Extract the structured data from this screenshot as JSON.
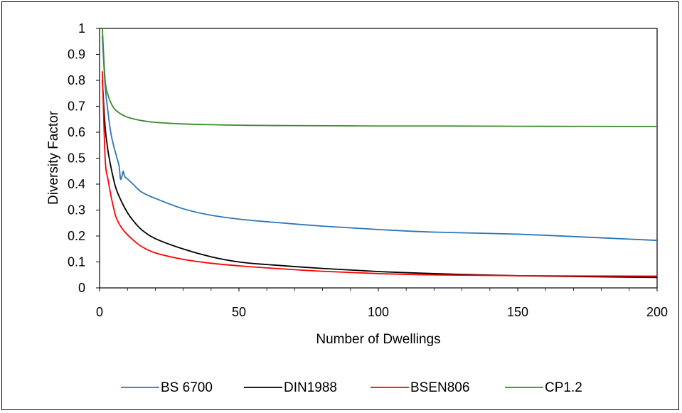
{
  "chart_data": {
    "type": "line",
    "title": "",
    "xlabel": "Number of Dwellings",
    "ylabel": "Diversity Factor",
    "xlim": [
      0,
      200
    ],
    "ylim": [
      0,
      1
    ],
    "x_ticks": [
      "0",
      "50",
      "100",
      "150",
      "200"
    ],
    "y_ticks": [
      "0",
      "0.1",
      "0.2",
      "0.3",
      "0.4",
      "0.5",
      "0.6",
      "0.7",
      "0.8",
      "0.9",
      "1"
    ],
    "grid": false,
    "legend_position": "bottom",
    "series": [
      {
        "name": "BS 6700",
        "color": "#2E75B6",
        "x": [
          1,
          2,
          3,
          4,
          5,
          6,
          7,
          7.5,
          8,
          8.5,
          9,
          10,
          12,
          15,
          20,
          30,
          40,
          50,
          60,
          80,
          100,
          120,
          150,
          180,
          200
        ],
        "y": [
          0.97,
          0.78,
          0.68,
          0.6,
          0.55,
          0.51,
          0.47,
          0.42,
          0.43,
          0.45,
          0.43,
          0.42,
          0.4,
          0.37,
          0.345,
          0.305,
          0.28,
          0.265,
          0.255,
          0.238,
          0.225,
          0.215,
          0.207,
          0.193,
          0.183
        ]
      },
      {
        "name": "DIN1988",
        "color": "#000000",
        "x": [
          1,
          2,
          3,
          4,
          5,
          6,
          8,
          10,
          12,
          15,
          20,
          30,
          40,
          50,
          60,
          80,
          100,
          120,
          150,
          200
        ],
        "y": [
          0.8,
          0.62,
          0.53,
          0.47,
          0.42,
          0.38,
          0.33,
          0.29,
          0.26,
          0.225,
          0.19,
          0.15,
          0.12,
          0.1,
          0.09,
          0.075,
          0.063,
          0.055,
          0.047,
          0.04
        ]
      },
      {
        "name": "BSEN806",
        "color": "#FF0000",
        "x": [
          1,
          2,
          3,
          4,
          5,
          6,
          8,
          10,
          12,
          15,
          20,
          30,
          40,
          50,
          60,
          80,
          100,
          120,
          150,
          200
        ],
        "y": [
          0.835,
          0.5,
          0.42,
          0.36,
          0.31,
          0.27,
          0.23,
          0.205,
          0.185,
          0.16,
          0.135,
          0.11,
          0.095,
          0.085,
          0.077,
          0.064,
          0.055,
          0.05,
          0.047,
          0.045
        ]
      },
      {
        "name": "CP1.2",
        "color": "#3A8A2A",
        "x": [
          1,
          2,
          3,
          4,
          5,
          6,
          8,
          10,
          12,
          15,
          20,
          30,
          40,
          50,
          60,
          80,
          100,
          120,
          150,
          200
        ],
        "y": [
          1.0,
          0.8,
          0.745,
          0.715,
          0.695,
          0.683,
          0.668,
          0.658,
          0.652,
          0.645,
          0.638,
          0.632,
          0.629,
          0.627,
          0.626,
          0.625,
          0.624,
          0.624,
          0.623,
          0.622
        ]
      }
    ]
  }
}
